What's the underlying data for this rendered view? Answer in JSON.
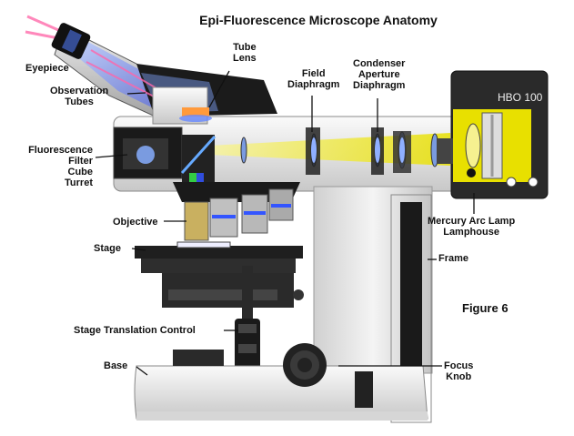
{
  "title": "Epi-Fluorescence Microscope Anatomy",
  "figure_label": "Figure 6",
  "lamphouse_badge": "HBO 100",
  "labels": {
    "eyepiece": "Eyepiece",
    "observation_tubes": "Observation\nTubes",
    "tube_lens": "Tube\nLens",
    "field_diaphragm": "Field\nDiaphragm",
    "condenser_aperture": "Condenser\nAperture\nDiaphragm",
    "filter_cube_turret": "Fluorescence\nFilter\nCube\nTurret",
    "mercury_lamphouse": "Mercury Arc Lamp\nLamphouse",
    "objective": "Objective",
    "stage": "Stage",
    "frame": "Frame",
    "stage_translation": "Stage Translation Control",
    "base": "Base",
    "focus_knob": "Focus\nKnob"
  },
  "colors": {
    "body": "#e6e6e6",
    "dark": "#1a1a1a",
    "lamp_yellow": "#e8e000",
    "light_path_yellow": "#f2ec6a",
    "excitation_blue": "#3355ff",
    "emission_green": "#33cc44",
    "eyepiece_beam": "#ff5599"
  },
  "icons": [
    "cube-icon",
    "knob-icon",
    "lens-icon"
  ]
}
